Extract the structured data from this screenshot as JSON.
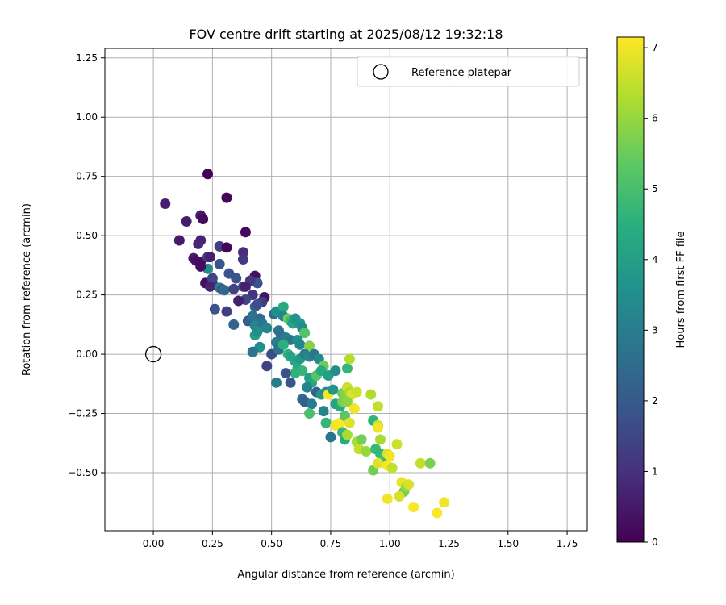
{
  "chart_data": {
    "type": "scatter",
    "title": "FOV centre drift starting at 2025/08/12 19:32:18",
    "xlabel": "Angular distance from reference (arcmin)",
    "ylabel": "Rotation from reference (arcmin)",
    "xlim": [
      -0.205,
      1.835
    ],
    "ylim": [
      -0.745,
      1.29
    ],
    "xticks": [
      "0.00",
      "0.25",
      "0.50",
      "0.75",
      "1.00",
      "1.25",
      "1.50",
      "1.75"
    ],
    "xtick_values": [
      0,
      0.25,
      0.5,
      0.75,
      1.0,
      1.25,
      1.5,
      1.75
    ],
    "yticks": [
      "−0.50",
      "−0.25",
      "0.00",
      "0.25",
      "0.50",
      "0.75",
      "1.00",
      "1.25"
    ],
    "ytick_values": [
      -0.5,
      -0.25,
      0,
      0.25,
      0.5,
      0.75,
      1.0,
      1.25
    ],
    "grid": true,
    "legend": {
      "placement": "upper-right",
      "entries": [
        "Reference platepar"
      ]
    },
    "reference_point": {
      "x": 0.0,
      "y": 0.0
    },
    "colorbar": {
      "label": "Hours from first FF file",
      "colormap": "viridis",
      "range": [
        0,
        7.15
      ],
      "ticks": [
        "0",
        "1",
        "2",
        "3",
        "4",
        "5",
        "6",
        "7"
      ],
      "tick_values": [
        0,
        1,
        2,
        3,
        4,
        5,
        6,
        7
      ]
    },
    "points": [
      [
        0.23,
        0.76,
        0.05
      ],
      [
        0.31,
        0.66,
        0.1
      ],
      [
        0.05,
        0.635,
        0.6
      ],
      [
        0.14,
        0.56,
        0.55
      ],
      [
        0.2,
        0.585,
        0.5
      ],
      [
        0.21,
        0.57,
        0.2
      ],
      [
        0.39,
        0.515,
        0.15
      ],
      [
        0.11,
        0.48,
        0.5
      ],
      [
        0.2,
        0.48,
        0.7
      ],
      [
        0.19,
        0.465,
        0.8
      ],
      [
        0.28,
        0.455,
        1.3
      ],
      [
        0.31,
        0.45,
        0.1
      ],
      [
        0.38,
        0.43,
        0.9
      ],
      [
        0.17,
        0.405,
        0.5
      ],
      [
        0.18,
        0.395,
        0.3
      ],
      [
        0.2,
        0.39,
        0.25
      ],
      [
        0.23,
        0.41,
        1.2
      ],
      [
        0.24,
        0.41,
        0.6
      ],
      [
        0.23,
        0.36,
        3.5
      ],
      [
        0.2,
        0.37,
        0.2
      ],
      [
        0.28,
        0.38,
        1.9
      ],
      [
        0.38,
        0.4,
        1.1
      ],
      [
        0.32,
        0.34,
        1.8
      ],
      [
        0.35,
        0.32,
        1.8
      ],
      [
        0.43,
        0.33,
        0.3
      ],
      [
        0.44,
        0.3,
        1.8
      ],
      [
        0.41,
        0.31,
        1.2
      ],
      [
        0.22,
        0.3,
        0.3
      ],
      [
        0.25,
        0.3,
        0.9
      ],
      [
        0.25,
        0.32,
        1.5
      ],
      [
        0.24,
        0.285,
        0.7
      ],
      [
        0.28,
        0.28,
        3.3
      ],
      [
        0.29,
        0.275,
        2.0
      ],
      [
        0.3,
        0.27,
        2.4
      ],
      [
        0.34,
        0.275,
        1.4
      ],
      [
        0.38,
        0.285,
        1.6
      ],
      [
        0.39,
        0.285,
        0.6
      ],
      [
        0.42,
        0.25,
        1.1
      ],
      [
        0.47,
        0.24,
        0.35
      ],
      [
        0.46,
        0.22,
        1.2
      ],
      [
        0.39,
        0.23,
        1.5
      ],
      [
        0.36,
        0.225,
        0.6
      ],
      [
        0.43,
        0.2,
        2.3
      ],
      [
        0.44,
        0.21,
        1.7
      ],
      [
        0.26,
        0.19,
        1.8
      ],
      [
        0.31,
        0.18,
        1.3
      ],
      [
        0.4,
        0.14,
        1.9
      ],
      [
        0.41,
        0.145,
        2.2
      ],
      [
        0.42,
        0.16,
        2.7
      ],
      [
        0.45,
        0.15,
        2.5
      ],
      [
        0.34,
        0.125,
        2.3
      ],
      [
        0.43,
        0.12,
        3.3
      ],
      [
        0.46,
        0.13,
        2.8
      ],
      [
        0.48,
        0.11,
        3.2
      ],
      [
        0.51,
        0.17,
        2.5
      ],
      [
        0.52,
        0.18,
        3.5
      ],
      [
        0.55,
        0.2,
        4.3
      ],
      [
        0.55,
        0.16,
        3.2
      ],
      [
        0.57,
        0.15,
        5.6
      ],
      [
        0.58,
        0.14,
        4.8
      ],
      [
        0.59,
        0.13,
        4.2
      ],
      [
        0.6,
        0.15,
        3.6
      ],
      [
        0.62,
        0.13,
        3.7
      ],
      [
        0.63,
        0.11,
        3.4
      ],
      [
        0.64,
        0.09,
        5.2
      ],
      [
        0.53,
        0.1,
        2.7
      ],
      [
        0.54,
        0.08,
        2.5
      ],
      [
        0.52,
        0.05,
        2.9
      ],
      [
        0.56,
        0.07,
        3.0
      ],
      [
        0.58,
        0.06,
        2.8
      ],
      [
        0.61,
        0.06,
        3.6
      ],
      [
        0.62,
        0.04,
        3.3
      ],
      [
        0.66,
        0.035,
        5.8
      ],
      [
        0.43,
        0.08,
        4.0
      ],
      [
        0.44,
        0.095,
        3.5
      ],
      [
        0.45,
        0.03,
        3.5
      ],
      [
        0.42,
        0.01,
        2.8
      ],
      [
        0.5,
        0.0,
        1.7
      ],
      [
        0.53,
        0.02,
        2.7
      ],
      [
        0.55,
        0.04,
        4.5
      ],
      [
        0.57,
        0.0,
        4.6
      ],
      [
        0.58,
        -0.01,
        4.1
      ],
      [
        0.6,
        -0.03,
        4.2
      ],
      [
        0.62,
        -0.02,
        3.8
      ],
      [
        0.64,
        0.0,
        3.0
      ],
      [
        0.66,
        -0.01,
        3.3
      ],
      [
        0.68,
        0.0,
        2.8
      ],
      [
        0.7,
        -0.02,
        3.4
      ],
      [
        0.72,
        -0.05,
        5.5
      ],
      [
        0.61,
        -0.06,
        4.3
      ],
      [
        0.63,
        -0.07,
        4.7
      ],
      [
        0.6,
        -0.08,
        4.6
      ],
      [
        0.56,
        -0.08,
        1.8
      ],
      [
        0.48,
        -0.05,
        1.4
      ],
      [
        0.66,
        -0.1,
        3.9
      ],
      [
        0.67,
        -0.12,
        4.2
      ],
      [
        0.69,
        -0.09,
        5.2
      ],
      [
        0.71,
        -0.07,
        4.3
      ],
      [
        0.74,
        -0.09,
        4.0
      ],
      [
        0.77,
        -0.07,
        3.4
      ],
      [
        0.82,
        -0.06,
        4.7
      ],
      [
        0.83,
        -0.02,
        6.3
      ],
      [
        0.58,
        -0.12,
        1.9
      ],
      [
        0.52,
        -0.12,
        3.0
      ],
      [
        0.65,
        -0.14,
        3.2
      ],
      [
        0.69,
        -0.16,
        2.2
      ],
      [
        0.71,
        -0.17,
        3.7
      ],
      [
        0.73,
        -0.16,
        3.4
      ],
      [
        0.74,
        -0.17,
        7.0
      ],
      [
        0.76,
        -0.15,
        3.7
      ],
      [
        0.63,
        -0.19,
        2.5
      ],
      [
        0.64,
        -0.2,
        2.2
      ],
      [
        0.67,
        -0.21,
        3.0
      ],
      [
        0.72,
        -0.24,
        3.2
      ],
      [
        0.77,
        -0.21,
        4.1
      ],
      [
        0.79,
        -0.22,
        4.4
      ],
      [
        0.8,
        -0.165,
        5.4
      ],
      [
        0.81,
        -0.17,
        5.8
      ],
      [
        0.82,
        -0.14,
        6.6
      ],
      [
        0.83,
        -0.16,
        6.2
      ],
      [
        0.84,
        -0.17,
        6.8
      ],
      [
        0.86,
        -0.16,
        6.6
      ],
      [
        0.8,
        -0.2,
        5.7
      ],
      [
        0.82,
        -0.2,
        5.9
      ],
      [
        0.85,
        -0.23,
        7.0
      ],
      [
        0.92,
        -0.17,
        6.3
      ],
      [
        0.95,
        -0.22,
        6.5
      ],
      [
        0.66,
        -0.25,
        5.0
      ],
      [
        0.73,
        -0.29,
        4.7
      ],
      [
        0.77,
        -0.3,
        7.0
      ],
      [
        0.79,
        -0.29,
        7.1
      ],
      [
        0.81,
        -0.26,
        5.3
      ],
      [
        0.83,
        -0.29,
        6.8
      ],
      [
        0.8,
        -0.33,
        4.7
      ],
      [
        0.81,
        -0.36,
        4.4
      ],
      [
        0.82,
        -0.34,
        6.2
      ],
      [
        0.75,
        -0.35,
        2.7
      ],
      [
        0.86,
        -0.37,
        6.2
      ],
      [
        0.88,
        -0.36,
        5.6
      ],
      [
        0.87,
        -0.4,
        6.5
      ],
      [
        0.9,
        -0.41,
        6.0
      ],
      [
        0.93,
        -0.28,
        4.6
      ],
      [
        0.95,
        -0.3,
        6.6
      ],
      [
        0.95,
        -0.31,
        7.0
      ],
      [
        0.96,
        -0.36,
        6.2
      ],
      [
        0.94,
        -0.4,
        4.8
      ],
      [
        0.96,
        -0.42,
        4.7
      ],
      [
        0.97,
        -0.44,
        4.9
      ],
      [
        0.99,
        -0.42,
        6.8
      ],
      [
        1.0,
        -0.43,
        7.0
      ],
      [
        0.93,
        -0.49,
        5.6
      ],
      [
        0.95,
        -0.46,
        6.8
      ],
      [
        0.99,
        -0.47,
        7.1
      ],
      [
        1.01,
        -0.48,
        6.5
      ],
      [
        1.03,
        -0.38,
        6.6
      ],
      [
        1.05,
        -0.54,
        6.9
      ],
      [
        1.06,
        -0.58,
        5.6
      ],
      [
        1.07,
        -0.56,
        6.0
      ],
      [
        1.08,
        -0.55,
        6.7
      ],
      [
        1.04,
        -0.6,
        6.7
      ],
      [
        0.99,
        -0.61,
        7.0
      ],
      [
        1.1,
        -0.645,
        7.1
      ],
      [
        1.13,
        -0.46,
        6.5
      ],
      [
        1.17,
        -0.46,
        5.7
      ],
      [
        1.2,
        -0.67,
        7.1
      ],
      [
        1.23,
        -0.625,
        7.0
      ]
    ]
  }
}
